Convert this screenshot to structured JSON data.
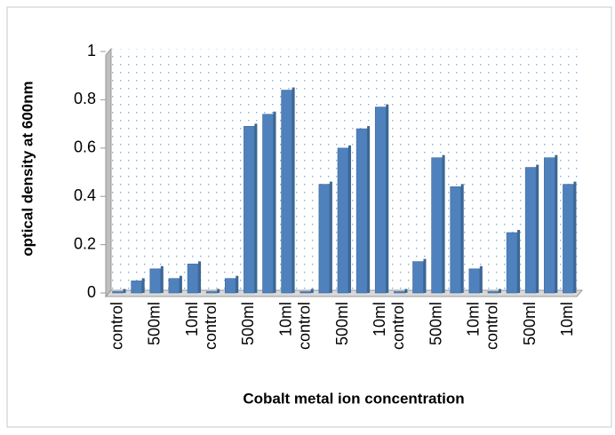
{
  "chart_data": {
    "type": "bar",
    "y_label": "optical density at 600nm",
    "x_label": "Cobalt metal ion concentration",
    "categories": [
      "control",
      null,
      "500ml",
      null,
      "10ml",
      "control",
      null,
      "500ml",
      null,
      "10ml",
      "control",
      null,
      "500ml",
      null,
      "10ml",
      "control",
      null,
      "500ml",
      null,
      "10ml",
      "control",
      null,
      "500ml",
      null,
      "10ml"
    ],
    "values": [
      0,
      0.05,
      0.1,
      0.06,
      0.12,
      0,
      0.06,
      0.69,
      0.74,
      0.84,
      0,
      0.45,
      0.6,
      0.68,
      0.77,
      0,
      0.13,
      0.56,
      0.44,
      0.1,
      0,
      0.25,
      0.52,
      0.56,
      0.45
    ],
    "color": "#4f81bd",
    "ylim": [
      0,
      1
    ],
    "yticks": [
      0,
      0.2,
      0.4,
      0.6,
      0.8,
      1
    ]
  }
}
